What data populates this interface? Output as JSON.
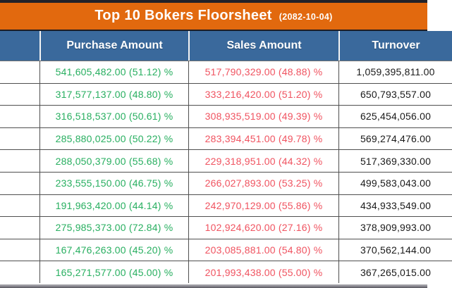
{
  "title_bar": {
    "title": "Top 10 Bokers Floorsheet",
    "date": "(2082-10-04)"
  },
  "colors": {
    "title_bar_bg": "#E2690E",
    "header_bg": "#3A699C",
    "purchase_text": "#28AF60",
    "sales_text": "#F05360",
    "turnover_text": "#1A1A1A",
    "top_bar": "#222229"
  },
  "table": {
    "columns": [
      "",
      "Purchase Amount",
      "Sales Amount",
      "Turnover"
    ],
    "rows": [
      {
        "purchase": "541,605,482.00 (51.12) %",
        "sales": "517,790,329.00 (48.88) %",
        "turnover": "1,059,395,811.00"
      },
      {
        "purchase": "317,577,137.00 (48.80) %",
        "sales": "333,216,420.00 (51.20) %",
        "turnover": "650,793,557.00"
      },
      {
        "purchase": "316,518,537.00 (50.61) %",
        "sales": "308,935,519.00 (49.39) %",
        "turnover": "625,454,056.00"
      },
      {
        "purchase": "285,880,025.00 (50.22) %",
        "sales": "283,394,451.00 (49.78) %",
        "turnover": "569,274,476.00"
      },
      {
        "purchase": "288,050,379.00 (55.68) %",
        "sales": "229,318,951.00 (44.32) %",
        "turnover": "517,369,330.00"
      },
      {
        "purchase": "233,555,150.00 (46.75) %",
        "sales": "266,027,893.00 (53.25) %",
        "turnover": "499,583,043.00"
      },
      {
        "purchase": "191,963,420.00 (44.14) %",
        "sales": "242,970,129.00 (55.86) %",
        "turnover": "434,933,549.00"
      },
      {
        "purchase": "275,985,373.00 (72.84) %",
        "sales": "102,924,620.00 (27.16) %",
        "turnover": "378,909,993.00"
      },
      {
        "purchase": "167,476,263.00 (45.20) %",
        "sales": "203,085,881.00 (54.80) %",
        "turnover": "370,562,144.00"
      },
      {
        "purchase": "165,271,577.00 (45.00) %",
        "sales": "201,993,438.00 (55.00) %",
        "turnover": "367,265,015.00"
      }
    ]
  }
}
